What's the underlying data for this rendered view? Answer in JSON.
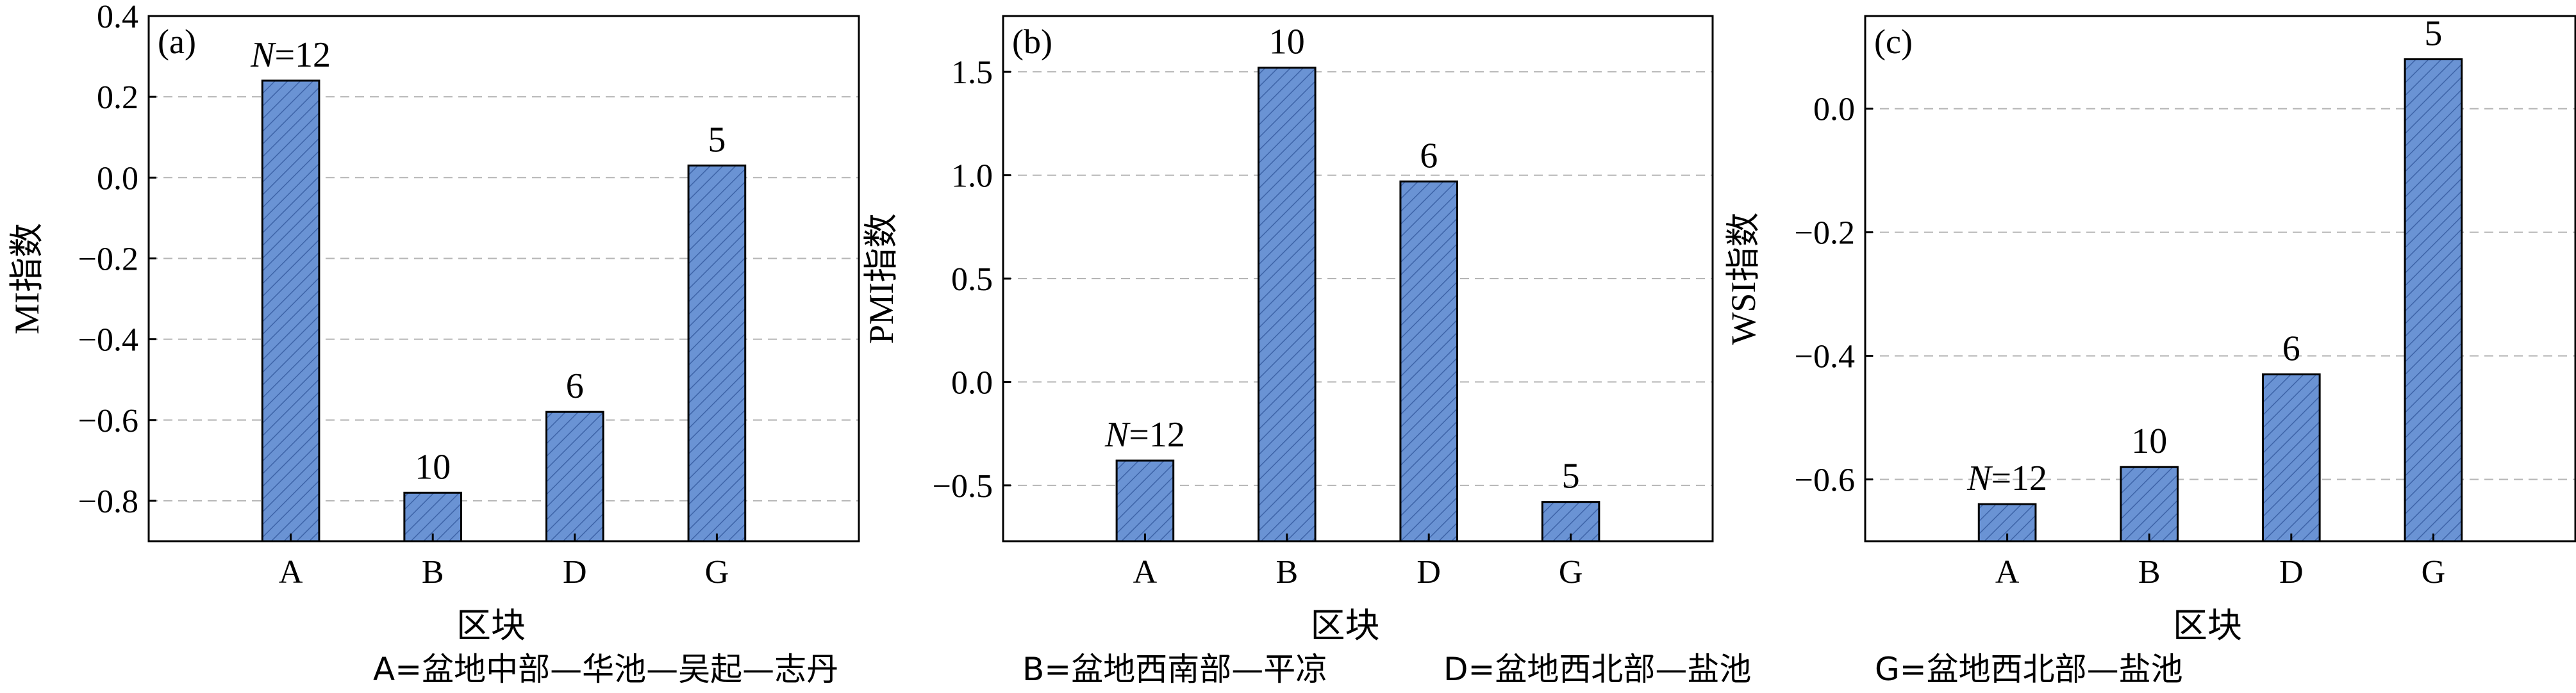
{
  "chart_data": [
    {
      "type": "bar",
      "panel_label": "(a)",
      "categories": [
        "A",
        "B",
        "D",
        "G"
      ],
      "values": [
        0.24,
        -0.78,
        -0.58,
        0.03
      ],
      "bar_labels": [
        "N=12",
        "10",
        "6",
        "5"
      ],
      "xlabel": "区块",
      "ylabel": "MI指数",
      "ylim": [
        -0.9,
        0.4
      ],
      "yticks": [
        -0.8,
        -0.6,
        -0.4,
        -0.2,
        0.0,
        0.2,
        0.4
      ],
      "ytick_labels": [
        "−0.8",
        "−0.6",
        "−0.4",
        "−0.2",
        "0.0",
        "0.2",
        "0.4"
      ],
      "grid": "horizontal dashed"
    },
    {
      "type": "bar",
      "panel_label": "(b)",
      "categories": [
        "A",
        "B",
        "D",
        "G"
      ],
      "values": [
        -0.38,
        1.52,
        0.97,
        -0.58
      ],
      "bar_labels": [
        "N=12",
        "10",
        "6",
        "5"
      ],
      "xlabel": "区块",
      "ylabel": "PMI指数",
      "ylim": [
        -0.77,
        1.77
      ],
      "yticks": [
        -0.5,
        0.0,
        0.5,
        1.0,
        1.5
      ],
      "ytick_labels": [
        "−0.5",
        "0.0",
        "0.5",
        "1.0",
        "1.5"
      ],
      "grid": "horizontal dashed"
    },
    {
      "type": "bar",
      "panel_label": "(c)",
      "categories": [
        "A",
        "B",
        "D",
        "G"
      ],
      "values": [
        -0.64,
        -0.58,
        -0.43,
        0.08
      ],
      "bar_labels": [
        "N=12",
        "10",
        "6",
        "5"
      ],
      "xlabel": "区块",
      "ylabel": "WSI指数",
      "ylim": [
        -0.7,
        0.15
      ],
      "yticks": [
        -0.6,
        -0.4,
        -0.2,
        0.0
      ],
      "ytick_labels": [
        "−0.6",
        "−0.4",
        "−0.2",
        "0.0"
      ],
      "grid": "horizontal dashed"
    }
  ],
  "legend": {
    "A": "A=盆地中部—华池—吴起—志丹",
    "B": "B=盆地西南部—平凉",
    "D": "D=盆地西北部—盐池",
    "G": "G=盆地西北部—盐池"
  },
  "colors": {
    "bar_fill": "#6a93d4",
    "bar_hatch": "#3e64a8",
    "grid": "#b5b5b5",
    "axis": "#000000"
  }
}
